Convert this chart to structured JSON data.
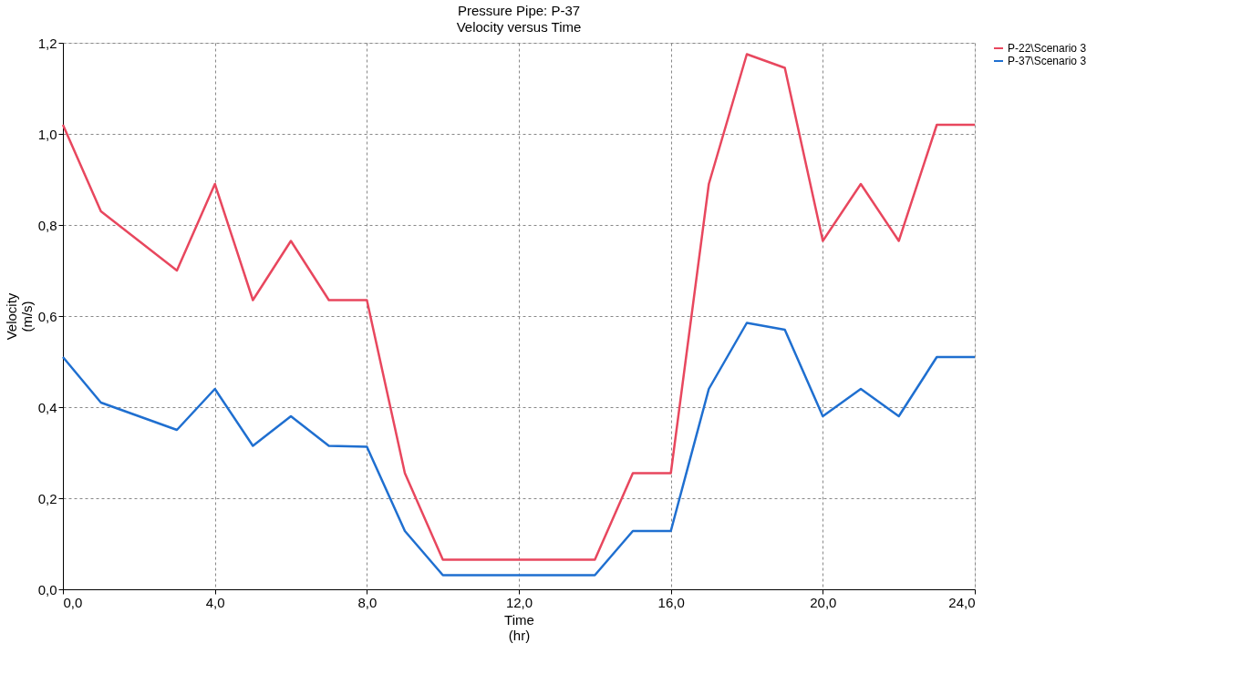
{
  "chart_data": {
    "type": "line",
    "title": "Pressure Pipe: P-37",
    "subtitle": "Velocity versus Time",
    "xlabel": "Time\n(hr)",
    "ylabel": "Velocity\n(m/s)",
    "series": [
      {
        "name": "P-22\\Scenario 3",
        "color": "#e8475e",
        "x": [
          0,
          1,
          3,
          4,
          5,
          6,
          7,
          8,
          9,
          10,
          14,
          15,
          16,
          17,
          18,
          19,
          20,
          21,
          22,
          23,
          24
        ],
        "values": [
          1.02,
          0.83,
          0.7,
          0.89,
          0.635,
          0.765,
          0.635,
          0.635,
          0.255,
          0.065,
          0.065,
          0.255,
          0.255,
          0.89,
          1.175,
          1.145,
          0.765,
          0.89,
          0.765,
          1.02,
          1.02
        ]
      },
      {
        "name": "P-37\\Scenario 3",
        "color": "#1f6fd0",
        "x": [
          0,
          1,
          3,
          4,
          5,
          6,
          7,
          8,
          9,
          10,
          14,
          15,
          16,
          17,
          18,
          19,
          20,
          21,
          22,
          23,
          24
        ],
        "values": [
          0.51,
          0.41,
          0.35,
          0.44,
          0.315,
          0.38,
          0.315,
          0.313,
          0.128,
          0.031,
          0.031,
          0.128,
          0.128,
          0.44,
          0.585,
          0.57,
          0.38,
          0.44,
          0.38,
          0.51,
          0.51
        ]
      }
    ],
    "xlim": [
      0,
      24
    ],
    "xticks": [
      {
        "value": 0,
        "label": "0,0"
      },
      {
        "value": 4,
        "label": "4,0"
      },
      {
        "value": 8,
        "label": "8,0"
      },
      {
        "value": 12,
        "label": "12,0"
      },
      {
        "value": 16,
        "label": "16,0"
      },
      {
        "value": 20,
        "label": "20,0"
      },
      {
        "value": 24,
        "label": "24,0"
      }
    ],
    "ylim": [
      0,
      1.2
    ],
    "yticks": [
      {
        "value": 0,
        "label": "0,0"
      },
      {
        "value": 0.2,
        "label": "0,2"
      },
      {
        "value": 0.4,
        "label": "0,4"
      },
      {
        "value": 0.6,
        "label": "0,6"
      },
      {
        "value": 0.8,
        "label": "0,8"
      },
      {
        "value": 1.0,
        "label": "1,0"
      },
      {
        "value": 1.2,
        "label": "1,2"
      }
    ],
    "grid": true,
    "line_style": "solid",
    "legend": "top right"
  }
}
